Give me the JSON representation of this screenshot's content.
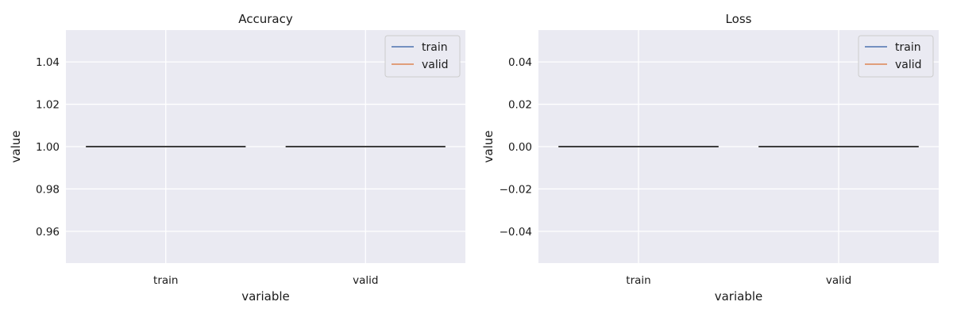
{
  "figure": {
    "background": "#ffffff"
  },
  "style": {
    "panel_bg": "#eaeaf2",
    "grid_color": "#ffffff",
    "box_line_color": "#3d3d3d",
    "legend_bg": "#eaeaf2",
    "legend_border": "#cccccc"
  },
  "chart_data": [
    {
      "type": "box",
      "title": "Accuracy",
      "xlabel": "variable",
      "ylabel": "value",
      "categories": [
        "train",
        "valid"
      ],
      "values": [
        1.0,
        1.0
      ],
      "ylim": [
        0.945,
        1.055
      ],
      "yticks": [
        0.96,
        0.98,
        1.0,
        1.02,
        1.04
      ],
      "ytick_labels": [
        "0.96",
        "0.98",
        "1.00",
        "1.02",
        "1.04"
      ],
      "grid": true,
      "legend": {
        "position": "top-right",
        "entries": [
          {
            "label": "train",
            "color": "#4c72b0"
          },
          {
            "label": "valid",
            "color": "#dd8452"
          }
        ]
      }
    },
    {
      "type": "box",
      "title": "Loss",
      "xlabel": "variable",
      "ylabel": "value",
      "categories": [
        "train",
        "valid"
      ],
      "values": [
        0.0,
        0.0
      ],
      "ylim": [
        -0.055,
        0.055
      ],
      "yticks": [
        -0.04,
        -0.02,
        0.0,
        0.02,
        0.04
      ],
      "ytick_labels": [
        "−0.04",
        "−0.02",
        "0.00",
        "0.02",
        "0.04"
      ],
      "grid": true,
      "legend": {
        "position": "top-right",
        "entries": [
          {
            "label": "train",
            "color": "#4c72b0"
          },
          {
            "label": "valid",
            "color": "#dd8452"
          }
        ]
      }
    }
  ]
}
